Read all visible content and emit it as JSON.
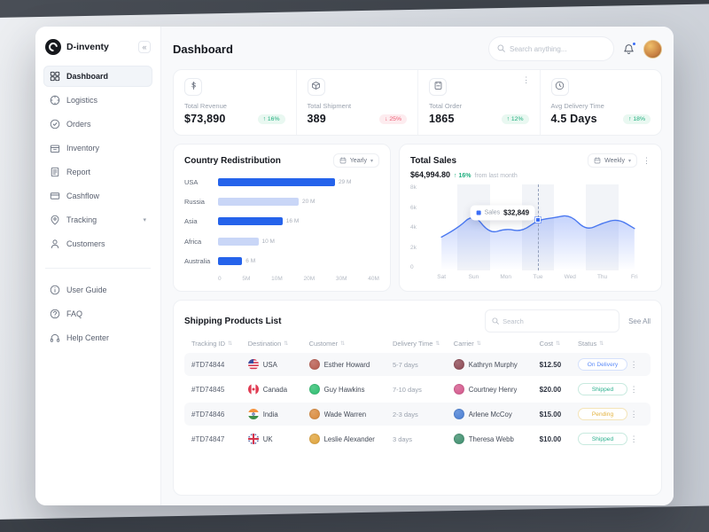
{
  "window": {
    "brand": "D-inventy"
  },
  "header": {
    "title": "Dashboard",
    "search_placeholder": "Search anything..."
  },
  "sidebar": {
    "main_items": [
      {
        "label": "Dashboard",
        "icon": "dashboard",
        "active": true
      },
      {
        "label": "Logistics",
        "icon": "logistics"
      },
      {
        "label": "Orders",
        "icon": "orders"
      },
      {
        "label": "Inventory",
        "icon": "inventory"
      },
      {
        "label": "Report",
        "icon": "report"
      },
      {
        "label": "Cashflow",
        "icon": "cashflow"
      },
      {
        "label": "Tracking",
        "icon": "tracking",
        "chevron": true
      },
      {
        "label": "Customers",
        "icon": "customers"
      }
    ],
    "secondary_items": [
      {
        "label": "User Guide",
        "icon": "user-guide"
      },
      {
        "label": "FAQ",
        "icon": "faq"
      },
      {
        "label": "Help Center",
        "icon": "help-center"
      }
    ]
  },
  "stats": [
    {
      "label": "Total Revenue",
      "value": "$73,890",
      "change": "16%",
      "direction": "up",
      "icon": "dollar"
    },
    {
      "label": "Total Shipment",
      "value": "389",
      "change": "25%",
      "direction": "down",
      "icon": "shipment"
    },
    {
      "label": "Total Order",
      "value": "1865",
      "change": "12%",
      "direction": "up",
      "icon": "order"
    },
    {
      "label": "Avg Delivery Time",
      "value": "4.5 Days",
      "change": "18%",
      "direction": "up",
      "icon": "clock"
    }
  ],
  "country_card": {
    "title": "Country Redistribution",
    "period": "Yearly"
  },
  "sales_card": {
    "title": "Total Sales",
    "amount": "$64,994.80",
    "change": "16%",
    "change_note": "from last month",
    "period": "Weekly"
  },
  "shipping": {
    "title": "Shipping Products List",
    "search_placeholder": "Search",
    "see_all": "See All",
    "columns": [
      "Tracking ID",
      "Destination",
      "Customer",
      "Delivery Time",
      "Carrier",
      "Cost",
      "Status"
    ],
    "rows": [
      {
        "tracking_id": "#TD74844",
        "destination": "USA",
        "flag": "usa",
        "customer": "Esther Howard",
        "customer_color": "#b85c50",
        "delivery_time": "5-7 days",
        "carrier": "Kathryn Murphy",
        "carrier_color": "#8e4a55",
        "cost": "$12.50",
        "status": "On Delivery",
        "status_type": "delivery"
      },
      {
        "tracking_id": "#TD74845",
        "destination": "Canada",
        "flag": "canada",
        "customer": "Guy Hawkins",
        "customer_color": "#2fbf71",
        "delivery_time": "7-10 days",
        "carrier": "Courtney Henry",
        "carrier_color": "#d4588c",
        "cost": "$20.00",
        "status": "Shipped",
        "status_type": "shipped"
      },
      {
        "tracking_id": "#TD74846",
        "destination": "India",
        "flag": "india",
        "customer": "Wade Warren",
        "customer_color": "#d98a3d",
        "delivery_time": "2-3 days",
        "carrier": "Arlene McCoy",
        "carrier_color": "#4a7fd4",
        "cost": "$15.00",
        "status": "Pending",
        "status_type": "pending"
      },
      {
        "tracking_id": "#TD74847",
        "destination": "UK",
        "flag": "uk",
        "customer": "Leslie Alexander",
        "customer_color": "#e0a43c",
        "delivery_time": "3 days",
        "carrier": "Theresa Webb",
        "carrier_color": "#3f8f6e",
        "cost": "$10.00",
        "status": "Shipped",
        "status_type": "shipped"
      }
    ]
  },
  "chart_data": [
    {
      "type": "bar",
      "orientation": "horizontal",
      "title": "Country Redistribution",
      "categories": [
        "USA",
        "Russia",
        "Asia",
        "Africa",
        "Australia"
      ],
      "values": [
        29,
        20,
        16,
        10,
        6
      ],
      "value_labels": [
        "29 M",
        "20 M",
        "16 M",
        "10 M",
        "6 M"
      ],
      "x_ticks": [
        "0",
        "5M",
        "10M",
        "20M",
        "30M",
        "40M"
      ],
      "xlim": [
        0,
        40
      ],
      "bar_colors": [
        "#2563eb",
        "#c9d6f7",
        "#2563eb",
        "#c9d6f7",
        "#2563eb"
      ],
      "legend": "none",
      "grid": false
    },
    {
      "type": "area",
      "title": "Total Sales",
      "x": [
        "Sat",
        "Sun",
        "Mon",
        "Tue",
        "Wed",
        "Thu",
        "Fri"
      ],
      "y_ticks": [
        "8k",
        "6k",
        "4k",
        "2k",
        "0"
      ],
      "ylim": [
        0,
        8
      ],
      "series": [
        {
          "name": "Sales",
          "values": [
            3.1,
            3.9,
            5.3,
            3.4,
            3.9,
            3.6,
            4.7,
            4.9,
            5.2,
            3.7,
            4.4,
            4.8,
            3.9
          ]
        }
      ],
      "highlight": {
        "day_index": 3,
        "point_index": 6,
        "label": "Sales",
        "value": "$32,849"
      },
      "line_color": "#4a78f0",
      "fill_color": "#5b82f6",
      "legend": "none",
      "grid": false
    }
  ]
}
